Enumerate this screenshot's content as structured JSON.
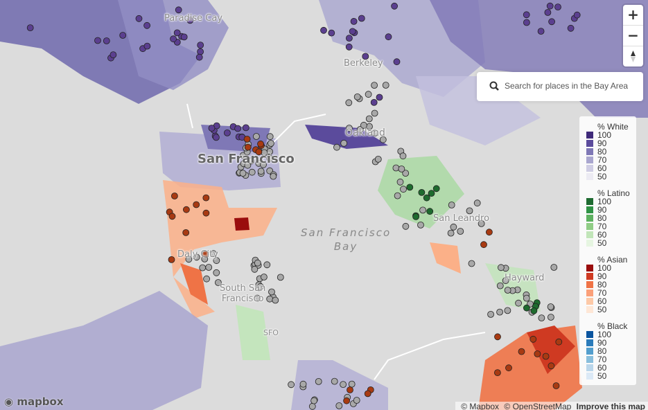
{
  "map": {
    "labels": {
      "paradise_cay": "Paradise Cay",
      "berkeley": "Berkeley",
      "oakland": "Oakland",
      "san_francisco": "San Francisco",
      "san_leandro": "San Leandro",
      "daly_city": "Daly City",
      "south_sf": [
        "South San",
        "Francisco"
      ],
      "sfo": "SFO",
      "hayward": "Hayward",
      "bay": [
        "San Francisco",
        "Bay"
      ]
    }
  },
  "controls": {
    "zoom_in": "+",
    "zoom_out": "−"
  },
  "search": {
    "placeholder": "Search for places in the Bay Area"
  },
  "legend": {
    "groups": [
      {
        "title": "% White",
        "items": [
          {
            "label": 100,
            "color": "#3f2a7a"
          },
          {
            "label": 90,
            "color": "#5b4b9c"
          },
          {
            "label": 80,
            "color": "#7f78b6"
          },
          {
            "label": 70,
            "color": "#a9a6cf"
          },
          {
            "label": 60,
            "color": "#cfcde4"
          },
          {
            "label": 50,
            "color": "#ecebf3"
          }
        ]
      },
      {
        "title": "% Latino",
        "items": [
          {
            "label": 100,
            "color": "#1f6b31"
          },
          {
            "label": 90,
            "color": "#2f9345"
          },
          {
            "label": 80,
            "color": "#5db160"
          },
          {
            "label": 70,
            "color": "#90cd86"
          },
          {
            "label": 60,
            "color": "#c1e5b9"
          },
          {
            "label": 50,
            "color": "#e6f5e1"
          }
        ]
      },
      {
        "title": "% Asian",
        "items": [
          {
            "label": 100,
            "color": "#9a0d0d"
          },
          {
            "label": 90,
            "color": "#cf3a22"
          },
          {
            "label": 80,
            "color": "#ef7346"
          },
          {
            "label": 70,
            "color": "#fba079"
          },
          {
            "label": 60,
            "color": "#fdc9a7"
          },
          {
            "label": 50,
            "color": "#fee7d6"
          }
        ]
      },
      {
        "title": "% Black",
        "items": [
          {
            "label": 100,
            "color": "#0b559f"
          },
          {
            "label": 90,
            "color": "#2b7bba"
          },
          {
            "label": 80,
            "color": "#539ecd"
          },
          {
            "label": 70,
            "color": "#89bedc"
          },
          {
            "label": 60,
            "color": "#bad6eb"
          },
          {
            "label": 50,
            "color": "#dbe9f6"
          }
        ]
      }
    ]
  },
  "logo": "mapbox",
  "attribution": [
    "© Mapbox",
    "© OpenStreetMap",
    "Improve this map"
  ]
}
